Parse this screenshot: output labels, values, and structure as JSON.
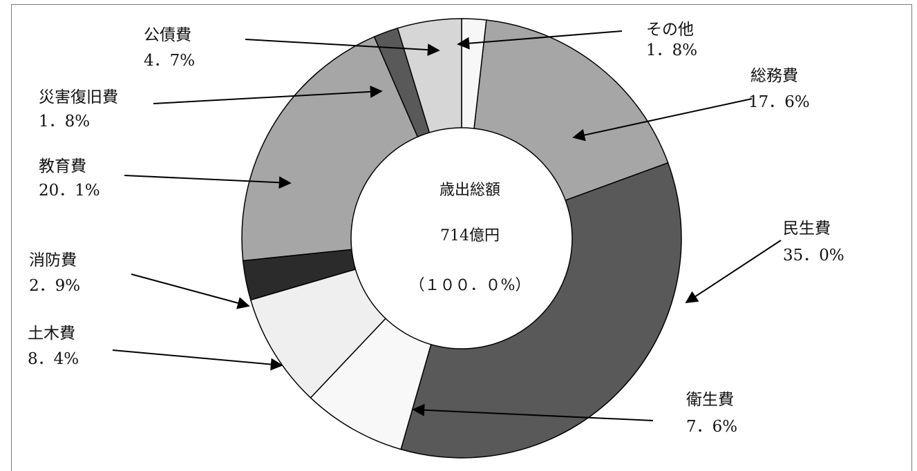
{
  "chart_data": {
    "type": "donut",
    "center": {
      "line1": "歳出総額",
      "line2": "714億円",
      "line3": "（１００．０%）"
    },
    "slices": [
      {
        "name": "その他",
        "value": 1.8,
        "pct_label": "1．8%",
        "color": "#f7f7f7"
      },
      {
        "name": "総務費",
        "value": 17.6,
        "pct_label": "17．6%",
        "color": "#a6a6a6"
      },
      {
        "name": "民生費",
        "value": 35.0,
        "pct_label": "35．0%",
        "color": "#595959"
      },
      {
        "name": "衛生費",
        "value": 7.6,
        "pct_label": "7．6%",
        "color": "#f8f8f8"
      },
      {
        "name": "土木費",
        "value": 8.4,
        "pct_label": "8．4%",
        "color": "#efefef"
      },
      {
        "name": "消防費",
        "value": 2.9,
        "pct_label": "2．9%",
        "color": "#2b2b2b"
      },
      {
        "name": "教育費",
        "value": 20.1,
        "pct_label": "20．1%",
        "color": "#a6a6a6"
      },
      {
        "name": "災害復旧費",
        "value": 1.8,
        "pct_label": "1．8%",
        "color": "#595959"
      },
      {
        "name": "公債費",
        "value": 4.7,
        "pct_label": "4．7%",
        "color": "#d6d6d6"
      }
    ]
  }
}
